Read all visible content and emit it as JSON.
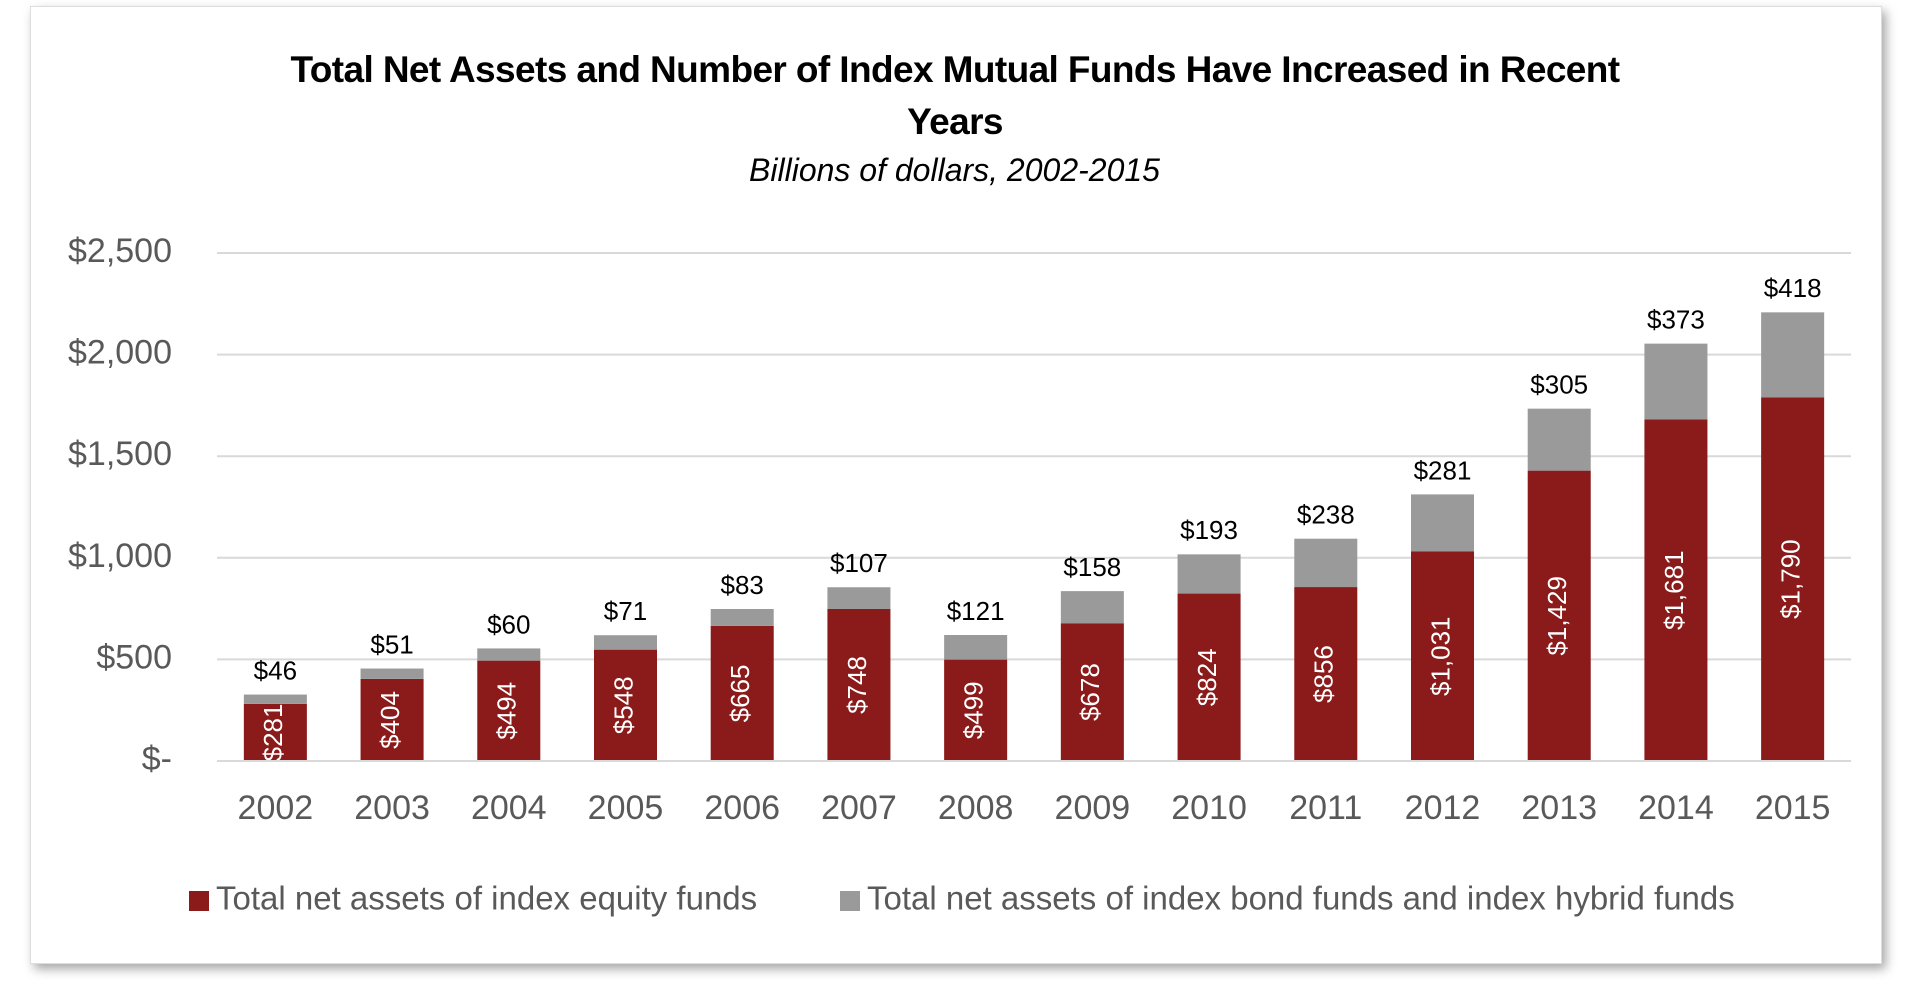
{
  "chart_data": {
    "type": "stacked_bar",
    "title": "Total Net Assets and Number of Index Mutual Funds Have Increased in Recent Years",
    "subtitle": "Billions of dollars, 2002-2015",
    "categories": [
      "2002",
      "2003",
      "2004",
      "2005",
      "2006",
      "2007",
      "2008",
      "2009",
      "2010",
      "2011",
      "2012",
      "2013",
      "2014",
      "2015"
    ],
    "series": [
      {
        "name": "Total net assets of index equity funds",
        "color": "#8b1a1a",
        "values": [
          281,
          404,
          494,
          548,
          665,
          748,
          499,
          678,
          824,
          856,
          1031,
          1429,
          1681,
          1790
        ],
        "value_labels": [
          "$281",
          "$404",
          "$494",
          "$548",
          "$665",
          "$748",
          "$499",
          "$678",
          "$824",
          "$856",
          "$1,031",
          "$1,429",
          "$1,681",
          "$1,790"
        ]
      },
      {
        "name": "Total net assets of index bond funds and index hybrid funds",
        "color": "#9a9a9a",
        "values": [
          46,
          51,
          60,
          71,
          83,
          107,
          121,
          158,
          193,
          238,
          281,
          305,
          373,
          418
        ],
        "value_labels": [
          "$46",
          "$51",
          "$60",
          "$71",
          "$83",
          "$107",
          "$121",
          "$158",
          "$193",
          "$238",
          "$281",
          "$305",
          "$373",
          "$418"
        ]
      }
    ],
    "ylim": [
      0,
      2500
    ],
    "yticks": [
      {
        "value": 0,
        "label": "$-"
      },
      {
        "value": 500,
        "label": "$500"
      },
      {
        "value": 1000,
        "label": "$1,000"
      },
      {
        "value": 1500,
        "label": "$1,500"
      },
      {
        "value": 2000,
        "label": "$2,000"
      },
      {
        "value": 2500,
        "label": "$2,500"
      }
    ],
    "grid": true
  }
}
